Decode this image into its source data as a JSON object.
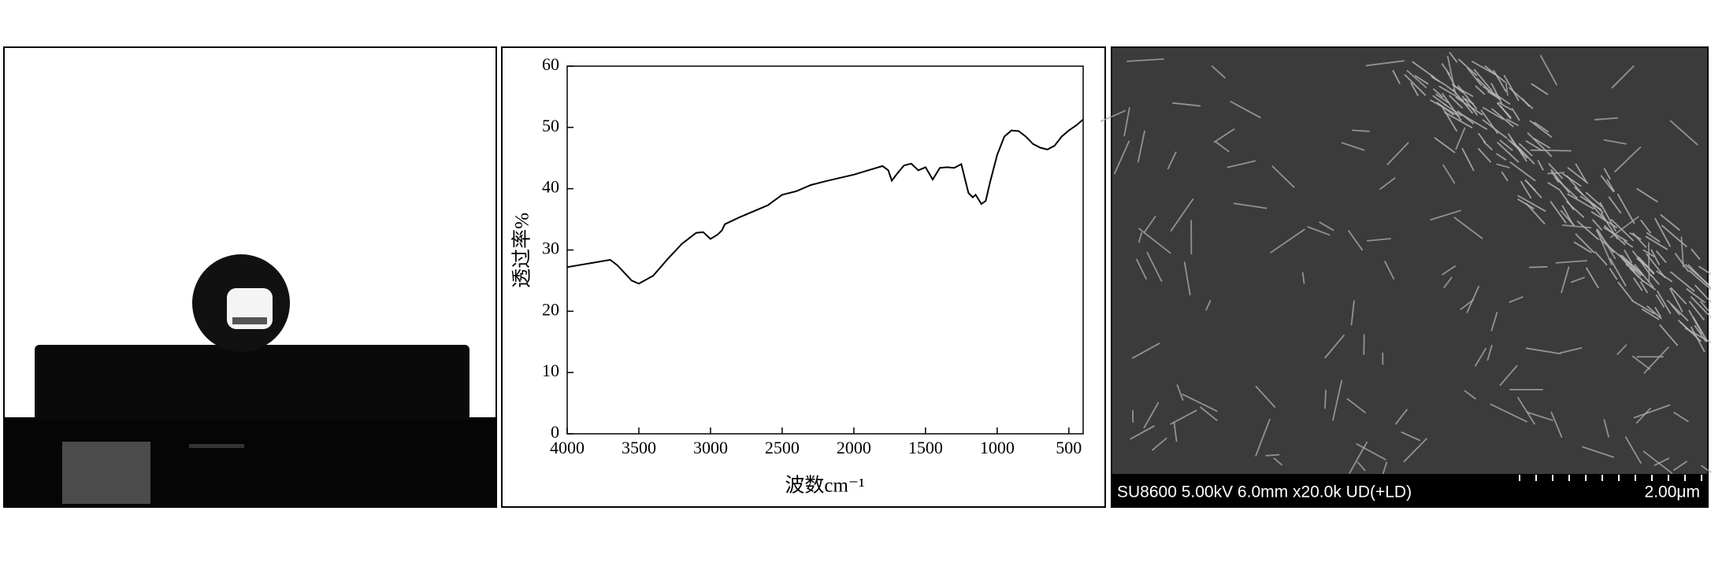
{
  "chart_data": {
    "type": "line",
    "x_label": "波数cm⁻¹",
    "y_label": "透过率%",
    "x": [
      4000,
      3800,
      3700,
      3650,
      3550,
      3500,
      3400,
      3300,
      3200,
      3100,
      3050,
      3000,
      2950,
      2920,
      2900,
      2800,
      2600,
      2500,
      2400,
      2300,
      2200,
      2000,
      1900,
      1800,
      1760,
      1735,
      1700,
      1650,
      1600,
      1550,
      1500,
      1450,
      1400,
      1350,
      1300,
      1250,
      1200,
      1170,
      1150,
      1110,
      1080,
      1050,
      1000,
      950,
      900,
      850,
      800,
      750,
      700,
      650,
      600,
      550,
      500,
      450,
      400
    ],
    "series": [
      {
        "color": "#000000",
        "values": [
          27.2,
          28.0,
          28.4,
          27.5,
          25.0,
          24.5,
          25.8,
          28.5,
          31.0,
          32.8,
          32.9,
          31.8,
          32.5,
          33.2,
          34.2,
          35.3,
          37.3,
          39.0,
          39.6,
          40.6,
          41.2,
          42.3,
          43.0,
          43.7,
          43.0,
          41.3,
          42.4,
          43.8,
          44.1,
          43.0,
          43.5,
          41.5,
          43.4,
          43.5,
          43.4,
          44.0,
          39.3,
          38.6,
          39.0,
          37.5,
          38.0,
          41.0,
          45.5,
          48.5,
          49.5,
          49.4,
          48.5,
          47.3,
          46.7,
          46.4,
          47.0,
          48.5,
          49.5,
          50.3,
          51.3
        ]
      }
    ],
    "xlim": [
      4000,
      400
    ],
    "xticks": [
      4000,
      3500,
      3000,
      2500,
      2000,
      1500,
      1000,
      500
    ],
    "ylim": [
      0,
      60
    ],
    "yticks": [
      0,
      10,
      20,
      30,
      40,
      50,
      60
    ]
  },
  "sem_image": {
    "info": "SU8600 5.00kV 6.0mm x20.0k UD(+LD)",
    "scale_label": "2.00μm"
  }
}
